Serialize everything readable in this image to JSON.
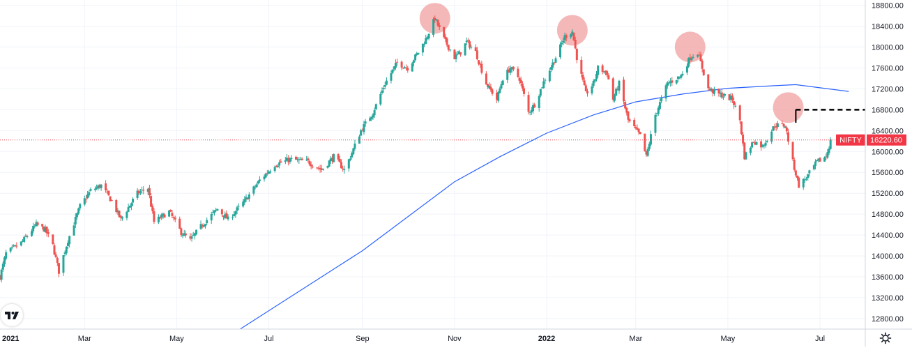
{
  "chart_data": {
    "type": "candlestick",
    "symbol": "NIFTY",
    "last_price": 16220.6,
    "last_price_label": "16220.60",
    "y_range": [
      12600,
      18900
    ],
    "y_ticks": [
      12800,
      13200,
      13600,
      14000,
      14400,
      14800,
      15200,
      15600,
      16000,
      16400,
      16800,
      17200,
      17600,
      18000,
      18400,
      18800
    ],
    "y_tick_labels": [
      "12800.00",
      "13200.00",
      "13600.00",
      "14000.00",
      "14400.00",
      "14800.00",
      "15200.00",
      "15600.00",
      "16000.00",
      "16400.00",
      "16800.00",
      "17200.00",
      "17600.00",
      "18000.00",
      "18400.00",
      "18800.00"
    ],
    "x_range": [
      "2021-01-04",
      "2022-07-31"
    ],
    "x_ticks": [
      {
        "date": "2021-01-01",
        "label": "2021",
        "bold": true
      },
      {
        "date": "2021-03-01",
        "label": "Mar",
        "bold": false
      },
      {
        "date": "2021-05-01",
        "label": "May",
        "bold": false
      },
      {
        "date": "2021-07-01",
        "label": "Jul",
        "bold": false
      },
      {
        "date": "2021-09-01",
        "label": "Sep",
        "bold": false
      },
      {
        "date": "2021-11-01",
        "label": "Nov",
        "bold": false
      },
      {
        "date": "2022-01-01",
        "label": "2022",
        "bold": true
      },
      {
        "date": "2022-03-01",
        "label": "Mar",
        "bold": false
      },
      {
        "date": "2022-05-01",
        "label": "May",
        "bold": false
      },
      {
        "date": "2022-07-01",
        "label": "Jul",
        "bold": false
      }
    ],
    "close_path": [
      [
        "2021-01-04",
        13600
      ],
      [
        "2021-01-08",
        14050
      ],
      [
        "2021-01-18",
        14250
      ],
      [
        "2021-01-28",
        14600
      ],
      [
        "2021-02-03",
        14500
      ],
      [
        "2021-02-08",
        14200
      ],
      [
        "2021-02-12",
        13700
      ],
      [
        "2021-02-18",
        14300
      ],
      [
        "2021-02-26",
        14950
      ],
      [
        "2021-03-05",
        15250
      ],
      [
        "2021-03-12",
        15350
      ],
      [
        "2021-03-19",
        15050
      ],
      [
        "2021-03-25",
        14700
      ],
      [
        "2021-04-05",
        15200
      ],
      [
        "2021-04-12",
        15300
      ],
      [
        "2021-04-16",
        14650
      ],
      [
        "2021-04-26",
        14850
      ],
      [
        "2021-05-04",
        14450
      ],
      [
        "2021-05-10",
        14300
      ],
      [
        "2021-05-18",
        14600
      ],
      [
        "2021-05-28",
        14900
      ],
      [
        "2021-06-04",
        14700
      ],
      [
        "2021-06-15",
        15050
      ],
      [
        "2021-06-25",
        15450
      ],
      [
        "2021-07-05",
        15750
      ],
      [
        "2021-07-15",
        15850
      ],
      [
        "2021-07-27",
        15800
      ],
      [
        "2021-08-05",
        15650
      ],
      [
        "2021-08-13",
        15900
      ],
      [
        "2021-08-20",
        15650
      ],
      [
        "2021-08-24",
        15900
      ],
      [
        "2021-08-31",
        16400
      ],
      [
        "2021-09-08",
        16750
      ],
      [
        "2021-09-16",
        17300
      ],
      [
        "2021-09-24",
        17700
      ],
      [
        "2021-10-01",
        17600
      ],
      [
        "2021-10-08",
        17900
      ],
      [
        "2021-10-13",
        18150
      ],
      [
        "2021-10-19",
        18550
      ],
      [
        "2021-10-25",
        18150
      ],
      [
        "2021-11-01",
        17800
      ],
      [
        "2021-11-05",
        17900
      ],
      [
        "2021-11-09",
        18100
      ],
      [
        "2021-11-15",
        17900
      ],
      [
        "2021-11-22",
        17300
      ],
      [
        "2021-11-29",
        17000
      ],
      [
        "2021-12-03",
        17400
      ],
      [
        "2021-12-08",
        17600
      ],
      [
        "2021-12-14",
        17400
      ],
      [
        "2021-12-20",
        16750
      ],
      [
        "2021-12-24",
        16900
      ],
      [
        "2021-12-31",
        17400
      ],
      [
        "2022-01-07",
        17800
      ],
      [
        "2022-01-13",
        18200
      ],
      [
        "2022-01-18",
        18300
      ],
      [
        "2022-01-21",
        17800
      ],
      [
        "2022-01-27",
        17100
      ],
      [
        "2022-02-01",
        17300
      ],
      [
        "2022-02-04",
        17600
      ],
      [
        "2022-02-10",
        17500
      ],
      [
        "2022-02-14",
        17000
      ],
      [
        "2022-02-18",
        17300
      ],
      [
        "2022-02-24",
        16600
      ],
      [
        "2022-03-04",
        16300
      ],
      [
        "2022-03-08",
        15900
      ],
      [
        "2022-03-14",
        16700
      ],
      [
        "2022-03-22",
        17300
      ],
      [
        "2022-03-31",
        17450
      ],
      [
        "2022-04-06",
        17800
      ],
      [
        "2022-04-11",
        17900
      ],
      [
        "2022-04-18",
        17200
      ],
      [
        "2022-04-25",
        17100
      ],
      [
        "2022-05-04",
        17000
      ],
      [
        "2022-05-09",
        16600
      ],
      [
        "2022-05-12",
        15900
      ],
      [
        "2022-05-18",
        16200
      ],
      [
        "2022-05-24",
        16100
      ],
      [
        "2022-06-01",
        16500
      ],
      [
        "2022-06-08",
        16500
      ],
      [
        "2022-06-13",
        15800
      ],
      [
        "2022-06-17",
        15350
      ],
      [
        "2022-06-22",
        15500
      ],
      [
        "2022-06-29",
        15800
      ],
      [
        "2022-07-05",
        15900
      ],
      [
        "2022-07-08",
        16200
      ]
    ],
    "ma_line": [
      [
        "2021-06-12",
        12600
      ],
      [
        "2021-09-01",
        14100
      ],
      [
        "2021-11-01",
        15420
      ],
      [
        "2021-12-01",
        15900
      ],
      [
        "2022-01-01",
        16350
      ],
      [
        "2022-02-01",
        16700
      ],
      [
        "2022-03-01",
        16950
      ],
      [
        "2022-04-01",
        17100
      ],
      [
        "2022-05-01",
        17210
      ],
      [
        "2022-06-01",
        17260
      ],
      [
        "2022-06-15",
        17280
      ],
      [
        "2022-07-01",
        17220
      ],
      [
        "2022-07-20",
        17150
      ]
    ],
    "highlight_circles": [
      {
        "date": "2021-10-19",
        "price": 18550
      },
      {
        "date": "2022-01-18",
        "price": 18320
      },
      {
        "date": "2022-04-06",
        "price": 18000
      },
      {
        "date": "2022-06-10",
        "price": 16840
      }
    ],
    "dashed_level": {
      "price": 16800,
      "from": "2022-06-15",
      "to": "2022-07-31"
    },
    "colors": {
      "up": "#26a69a",
      "down": "#ef5350",
      "ma": "#2962ff",
      "circle": "#ef9a9a",
      "price_tag": "#f23645",
      "dashed": "#000000",
      "grid": "#f0f3fa"
    }
  },
  "ui": {
    "logo_icon": "tradingview-logo-icon",
    "settings_icon": "gear-icon"
  }
}
